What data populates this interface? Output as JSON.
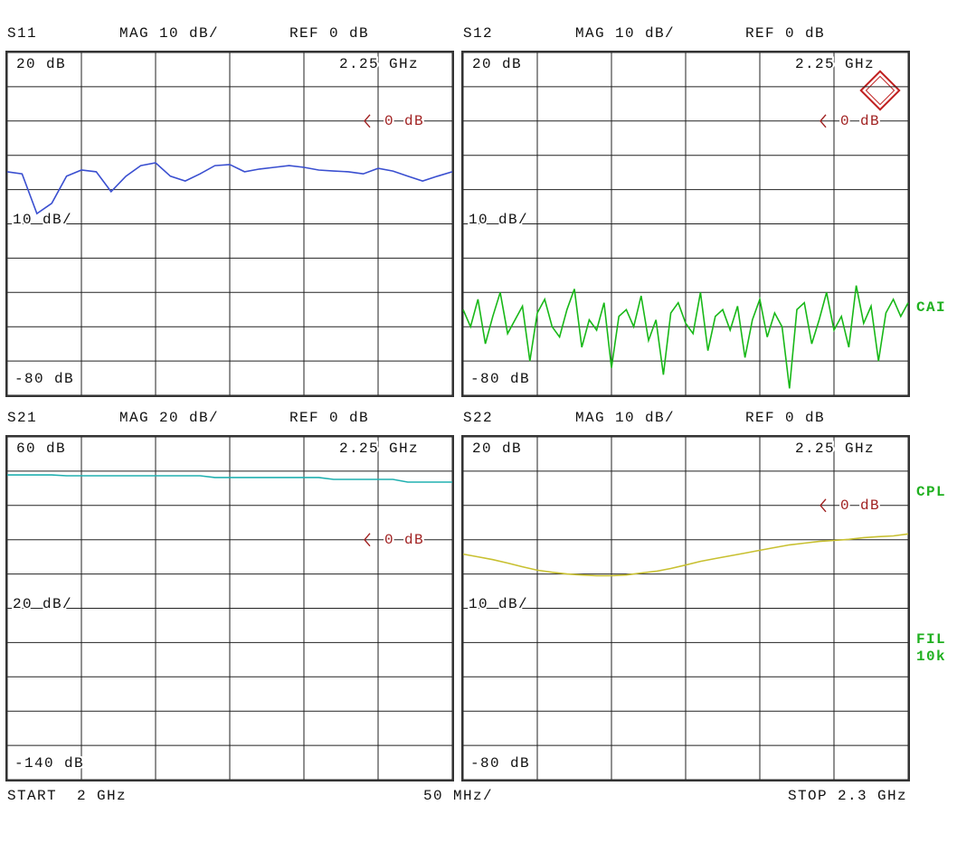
{
  "chart_data": [
    {
      "type": "line",
      "trace": "S11",
      "format": "MAG 10 dB/",
      "reference": "REF 0 dB",
      "top_label": "20 dB",
      "marker_label": "2.25 GHz",
      "ref_label": "0 dB",
      "ref_value": 0,
      "scale_label": "10 dB/",
      "bottom_label": "-80 dB",
      "xlim": [
        2,
        2.3
      ],
      "xticks": [
        2,
        2.05,
        2.1,
        2.15,
        2.2,
        2.25,
        2.3
      ],
      "ylim": [
        -80,
        20
      ],
      "yticks": [
        20,
        10,
        0,
        -10,
        -20,
        -30,
        -40,
        -50,
        -60,
        -70,
        -80
      ],
      "color": "#3a4fd0",
      "x": [
        2,
        2.01,
        2.02,
        2.03,
        2.04,
        2.05,
        2.06,
        2.07,
        2.08,
        2.09,
        2.1,
        2.11,
        2.12,
        2.13,
        2.14,
        2.15,
        2.16,
        2.17,
        2.18,
        2.19,
        2.2,
        2.21,
        2.22,
        2.23,
        2.24,
        2.25,
        2.26,
        2.27,
        2.28,
        2.29,
        2.3
      ],
      "values": [
        -14.8,
        -15.4,
        -27,
        -24,
        -16.1,
        -14.3,
        -14.8,
        -20.6,
        -16.1,
        -13,
        -12.2,
        -16.1,
        -17.5,
        -15.4,
        -13,
        -12.7,
        -14.8,
        -14,
        -13.5,
        -13,
        -13.5,
        -14.3,
        -14.6,
        -14.8,
        -15.4,
        -13.8,
        -14.6,
        -16.1,
        -17.5,
        -16.1,
        -14.8
      ]
    },
    {
      "type": "line",
      "trace": "S12",
      "format": "MAG 10 dB/",
      "reference": "REF 0 dB",
      "top_label": "20 dB",
      "marker_label": "2.25 GHz",
      "ref_label": "0 dB",
      "ref_value": 0,
      "scale_label": "10 dB/",
      "bottom_label": "-80 dB",
      "xlim": [
        2,
        2.3
      ],
      "xticks": [
        2,
        2.05,
        2.1,
        2.15,
        2.2,
        2.25,
        2.3
      ],
      "ylim": [
        -80,
        20
      ],
      "yticks": [
        20,
        10,
        0,
        -10,
        -20,
        -30,
        -40,
        -50,
        -60,
        -70,
        -80
      ],
      "color": "#18b818",
      "x": [
        2,
        2.005,
        2.01,
        2.015,
        2.02,
        2.025,
        2.03,
        2.035,
        2.04,
        2.045,
        2.05,
        2.055,
        2.06,
        2.065,
        2.07,
        2.075,
        2.08,
        2.085,
        2.09,
        2.095,
        2.1,
        2.105,
        2.11,
        2.115,
        2.12,
        2.125,
        2.13,
        2.135,
        2.14,
        2.145,
        2.15,
        2.155,
        2.16,
        2.165,
        2.17,
        2.175,
        2.18,
        2.185,
        2.19,
        2.195,
        2.2,
        2.205,
        2.21,
        2.215,
        2.22,
        2.225,
        2.23,
        2.235,
        2.24,
        2.245,
        2.25,
        2.255,
        2.26,
        2.265,
        2.27,
        2.275,
        2.28,
        2.285,
        2.29,
        2.295,
        2.3
      ],
      "values": [
        -55,
        -60,
        -52,
        -65,
        -57,
        -50,
        -62,
        -58,
        -54,
        -70,
        -56,
        -52,
        -60,
        -63,
        -55,
        -49,
        -66,
        -58,
        -61,
        -53,
        -72,
        -57,
        -55,
        -60,
        -51,
        -64,
        -58,
        -74,
        -56,
        -53,
        -59,
        -62,
        -50,
        -67,
        -57,
        -55,
        -61,
        -54,
        -69,
        -58,
        -52,
        -63,
        -56,
        -60,
        -78,
        -55,
        -53,
        -65,
        -58,
        -50,
        -61,
        -57,
        -66,
        -48,
        -59,
        -54,
        -70,
        -56,
        -52,
        -57,
        -53
      ]
    },
    {
      "type": "line",
      "trace": "S21",
      "format": "MAG 20 dB/",
      "reference": "REF 0 dB",
      "top_label": "60 dB",
      "marker_label": "2.25 GHz",
      "ref_label": "0 dB",
      "ref_value": 0,
      "scale_label": "20 dB/",
      "bottom_label": "-140 dB",
      "xlim": [
        2,
        2.3
      ],
      "xticks": [
        2,
        2.05,
        2.1,
        2.15,
        2.2,
        2.25,
        2.3
      ],
      "ylim": [
        -140,
        60
      ],
      "yticks": [
        60,
        40,
        20,
        0,
        -20,
        -40,
        -60,
        -80,
        -100,
        -120,
        -140
      ],
      "color": "#20b0b0",
      "x": [
        2,
        2.01,
        2.02,
        2.03,
        2.04,
        2.05,
        2.06,
        2.07,
        2.08,
        2.09,
        2.1,
        2.11,
        2.12,
        2.13,
        2.14,
        2.15,
        2.16,
        2.17,
        2.18,
        2.19,
        2.2,
        2.21,
        2.22,
        2.23,
        2.24,
        2.25,
        2.26,
        2.27,
        2.28,
        2.29,
        2.3
      ],
      "values": [
        37.8,
        37.8,
        37.8,
        37.8,
        37.3,
        37.3,
        37.3,
        37.3,
        37.3,
        37.3,
        37.3,
        37.3,
        37.3,
        37.3,
        36.3,
        36.3,
        36.3,
        36.3,
        36.3,
        36.3,
        36.3,
        36.3,
        35.2,
        35.2,
        35.2,
        35.2,
        35.2,
        33.6,
        33.6,
        33.6,
        33.6
      ]
    },
    {
      "type": "line",
      "trace": "S22",
      "format": "MAG 10 dB/",
      "reference": "REF 0 dB",
      "top_label": "20 dB",
      "marker_label": "2.25 GHz",
      "ref_label": "0 dB",
      "ref_value": 0,
      "scale_label": "10 dB/",
      "bottom_label": "-80 dB",
      "xlim": [
        2,
        2.3
      ],
      "xticks": [
        2,
        2.05,
        2.1,
        2.15,
        2.2,
        2.25,
        2.3
      ],
      "ylim": [
        -80,
        20
      ],
      "yticks": [
        20,
        10,
        0,
        -10,
        -20,
        -30,
        -40,
        -50,
        -60,
        -70,
        -80
      ],
      "color": "#c8c030",
      "x": [
        2,
        2.01,
        2.02,
        2.03,
        2.04,
        2.05,
        2.06,
        2.07,
        2.08,
        2.09,
        2.1,
        2.11,
        2.12,
        2.13,
        2.14,
        2.15,
        2.16,
        2.17,
        2.18,
        2.19,
        2.2,
        2.21,
        2.22,
        2.23,
        2.24,
        2.25,
        2.26,
        2.27,
        2.28,
        2.29,
        2.3
      ],
      "values": [
        -14.2,
        -15,
        -15.8,
        -16.8,
        -17.9,
        -18.9,
        -19.5,
        -20,
        -20.3,
        -20.5,
        -20.5,
        -20.3,
        -19.7,
        -19.2,
        -18.4,
        -17.4,
        -16.3,
        -15.5,
        -14.7,
        -13.9,
        -13.1,
        -12.3,
        -11.5,
        -11,
        -10.5,
        -10.2,
        -9.9,
        -9.4,
        -9.1,
        -8.9,
        -8.3
      ]
    }
  ],
  "side_labels": [
    "CAI",
    "CPL",
    "FIL",
    "10k"
  ],
  "footer": {
    "start": "START  2 GHz",
    "span": "50 MHz/",
    "stop": "STOP 2.3 GHz"
  }
}
